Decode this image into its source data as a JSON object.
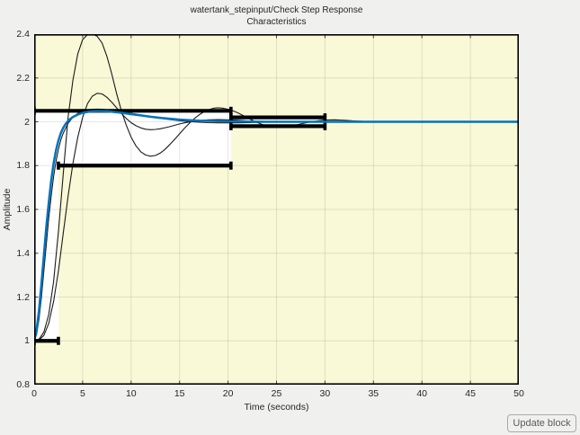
{
  "figure": {
    "title_line1": "watertank_stepinput/Check Step Response",
    "title_line2": "Characteristics"
  },
  "button": {
    "label": "Update block"
  },
  "chart_data": {
    "type": "line",
    "title": "watertank_stepinput/Check Step Response Characteristics",
    "xlabel": "Time (seconds)",
    "ylabel": "Amplitude",
    "xlim": [
      0,
      50
    ],
    "ylim": [
      0.8,
      2.4
    ],
    "xticks": [
      0,
      5,
      10,
      15,
      20,
      25,
      30,
      35,
      40,
      45,
      50
    ],
    "xtick_labels": [
      "0",
      "5",
      "10",
      "15",
      "20",
      "25",
      "30",
      "35",
      "40",
      "45",
      "50"
    ],
    "yticks": [
      0.8,
      1,
      1.2,
      1.4,
      1.6,
      1.8,
      2,
      2.2,
      2.4
    ],
    "ytick_labels": [
      "0.8",
      "1",
      "1.2",
      "1.4",
      "1.6",
      "1.8",
      "2",
      "2.2",
      "2.4"
    ],
    "grid": true,
    "legend": "none",
    "colors": {
      "forbidden_region": "#f9f9d8",
      "allowed_region": "#ffffff",
      "bound_line": "#000000",
      "iteration_curve": "#1a1a1a",
      "final_curve": "#0072bd",
      "gridline": "rgba(0,0,0,0.10)",
      "axes_box": "#000000",
      "tick": "#444444"
    },
    "bound_segments": [
      {
        "name": "upper-overshoot-bound",
        "y": 2.05,
        "x1": 0,
        "x2": 20.3
      },
      {
        "name": "lower-rise-bound",
        "y": 1.8,
        "x1": 2.5,
        "x2": 20.3
      },
      {
        "name": "upper-settling-bound",
        "y": 2.02,
        "x1": 20.3,
        "x2": 30
      },
      {
        "name": "lower-settling-bound",
        "y": 1.98,
        "x1": 20.3,
        "x2": 30
      },
      {
        "name": "initial-value-bound",
        "y": 1.0,
        "x1": 0,
        "x2": 2.5
      }
    ],
    "allowed_regions": [
      {
        "x1": 0,
        "x2": 2.5,
        "y1": 1.0,
        "y2": 2.05
      },
      {
        "x1": 2.5,
        "x2": 20.3,
        "y1": 1.8,
        "y2": 2.05
      },
      {
        "x1": 20.3,
        "x2": 30,
        "y1": 1.98,
        "y2": 2.02
      }
    ],
    "series": [
      {
        "name": "iteration-response-1",
        "color": "#1a1a1a",
        "width": 1.1,
        "points": [
          [
            0,
            1
          ],
          [
            0.5,
            1.008
          ],
          [
            1,
            1.04
          ],
          [
            1.5,
            1.12
          ],
          [
            2,
            1.27
          ],
          [
            2.5,
            1.5
          ],
          [
            3,
            1.76
          ],
          [
            3.5,
            2.02
          ],
          [
            4,
            2.19
          ],
          [
            4.5,
            2.31
          ],
          [
            5,
            2.375
          ],
          [
            5.5,
            2.398
          ],
          [
            6,
            2.401
          ],
          [
            6.5,
            2.39
          ],
          [
            7,
            2.36
          ],
          [
            7.5,
            2.3
          ],
          [
            8,
            2.22
          ],
          [
            8.5,
            2.13
          ],
          [
            9,
            2.05
          ],
          [
            9.5,
            1.985
          ],
          [
            10,
            1.93
          ],
          [
            10.5,
            1.89
          ],
          [
            11,
            1.863
          ],
          [
            11.5,
            1.848
          ],
          [
            12,
            1.843
          ],
          [
            12.5,
            1.846
          ],
          [
            13,
            1.857
          ],
          [
            13.5,
            1.874
          ],
          [
            14,
            1.896
          ],
          [
            14.5,
            1.92
          ],
          [
            15,
            1.945
          ],
          [
            15.5,
            1.97
          ],
          [
            16,
            1.993
          ],
          [
            16.5,
            2.014
          ],
          [
            17,
            2.031
          ],
          [
            17.5,
            2.045
          ],
          [
            18,
            2.055
          ],
          [
            18.5,
            2.062
          ],
          [
            19,
            2.064
          ],
          [
            19.5,
            2.062
          ],
          [
            20,
            2.057
          ],
          [
            20.5,
            2.05
          ],
          [
            21,
            2.041
          ],
          [
            21.5,
            2.03
          ],
          [
            22,
            2.018
          ],
          [
            22.5,
            2.007
          ],
          [
            23,
            1.997
          ],
          [
            23.5,
            1.988
          ],
          [
            24,
            1.981
          ],
          [
            24.5,
            1.976
          ],
          [
            25,
            1.974
          ],
          [
            25.5,
            1.974
          ],
          [
            26,
            1.976
          ],
          [
            26.5,
            1.98
          ],
          [
            27,
            1.985
          ],
          [
            27.5,
            1.99
          ],
          [
            28,
            1.995
          ],
          [
            28.5,
            1.999
          ],
          [
            29,
            2.003
          ],
          [
            29.5,
            2.006
          ],
          [
            30,
            2.008
          ],
          [
            31,
            2.009
          ],
          [
            32,
            2.007
          ],
          [
            33,
            2.004
          ],
          [
            34,
            2.002
          ],
          [
            35,
            2.001
          ],
          [
            36,
            2
          ],
          [
            40,
            2
          ],
          [
            45,
            2
          ],
          [
            50,
            2
          ]
        ]
      },
      {
        "name": "iteration-response-2",
        "color": "#1a1a1a",
        "width": 1.1,
        "points": [
          [
            0,
            1
          ],
          [
            0.5,
            1.004
          ],
          [
            1,
            1.025
          ],
          [
            1.5,
            1.08
          ],
          [
            2,
            1.18
          ],
          [
            2.5,
            1.32
          ],
          [
            3,
            1.49
          ],
          [
            3.5,
            1.66
          ],
          [
            4,
            1.81
          ],
          [
            4.5,
            1.93
          ],
          [
            5,
            2.02
          ],
          [
            5.5,
            2.083
          ],
          [
            6,
            2.117
          ],
          [
            6.5,
            2.13
          ],
          [
            7,
            2.127
          ],
          [
            7.5,
            2.112
          ],
          [
            8,
            2.09
          ],
          [
            8.5,
            2.064
          ],
          [
            9,
            2.038
          ],
          [
            9.5,
            2.015
          ],
          [
            10,
            1.996
          ],
          [
            10.5,
            1.982
          ],
          [
            11,
            1.972
          ],
          [
            11.5,
            1.966
          ],
          [
            12,
            1.964
          ],
          [
            12.5,
            1.965
          ],
          [
            13,
            1.968
          ],
          [
            13.5,
            1.973
          ],
          [
            14,
            1.978
          ],
          [
            14.5,
            1.984
          ],
          [
            15,
            1.99
          ],
          [
            15.5,
            1.995
          ],
          [
            16,
            1.999
          ],
          [
            17,
            2.005
          ],
          [
            18,
            2.009
          ],
          [
            19,
            2.01
          ],
          [
            20,
            2.009
          ],
          [
            21,
            2.007
          ],
          [
            22,
            2.004
          ],
          [
            23,
            2.002
          ],
          [
            24,
            2.001
          ],
          [
            25,
            2
          ],
          [
            26,
            2
          ],
          [
            28,
            2
          ],
          [
            30,
            2
          ],
          [
            35,
            2
          ],
          [
            40,
            2
          ],
          [
            50,
            2
          ]
        ]
      },
      {
        "name": "iteration-response-3",
        "color": "#1a1a1a",
        "width": 1.1,
        "points": [
          [
            0,
            1
          ],
          [
            0.25,
            1.03
          ],
          [
            0.5,
            1.1
          ],
          [
            0.75,
            1.2
          ],
          [
            1,
            1.32
          ],
          [
            1.25,
            1.44
          ],
          [
            1.5,
            1.56
          ],
          [
            1.75,
            1.66
          ],
          [
            2,
            1.75
          ],
          [
            2.25,
            1.82
          ],
          [
            2.5,
            1.875
          ],
          [
            2.75,
            1.917
          ],
          [
            3,
            1.948
          ],
          [
            3.5,
            1.993
          ],
          [
            4,
            2.021
          ],
          [
            4.5,
            2.038
          ],
          [
            5,
            2.048
          ],
          [
            5.5,
            2.054
          ],
          [
            6,
            2.057
          ],
          [
            6.5,
            2.058
          ],
          [
            7,
            2.057
          ],
          [
            8,
            2.053
          ],
          [
            9,
            2.047
          ],
          [
            10,
            2.039
          ],
          [
            11,
            2.031
          ],
          [
            12,
            2.023
          ],
          [
            13,
            2.016
          ],
          [
            14,
            2.01
          ],
          [
            15,
            2.005
          ],
          [
            16,
            2.001
          ],
          [
            17,
            1.998
          ],
          [
            18,
            1.996
          ],
          [
            19,
            1.995
          ],
          [
            20,
            1.995
          ],
          [
            21,
            1.995
          ],
          [
            22,
            1.996
          ],
          [
            23,
            1.997
          ],
          [
            24,
            1.998
          ],
          [
            25,
            1.999
          ],
          [
            26,
            2
          ],
          [
            28,
            2
          ],
          [
            30,
            2
          ],
          [
            35,
            2
          ],
          [
            40,
            2
          ],
          [
            50,
            2
          ]
        ]
      },
      {
        "name": "final-response",
        "color": "#0072bd",
        "width": 2.5,
        "points": [
          [
            0,
            1
          ],
          [
            0.25,
            1.05
          ],
          [
            0.5,
            1.14
          ],
          [
            0.75,
            1.26
          ],
          [
            1,
            1.39
          ],
          [
            1.25,
            1.52
          ],
          [
            1.5,
            1.63
          ],
          [
            1.75,
            1.73
          ],
          [
            2,
            1.81
          ],
          [
            2.25,
            1.87
          ],
          [
            2.5,
            1.915
          ],
          [
            2.75,
            1.948
          ],
          [
            3,
            1.972
          ],
          [
            3.25,
            1.99
          ],
          [
            3.5,
            2.004
          ],
          [
            3.75,
            2.014
          ],
          [
            4,
            2.022
          ],
          [
            4.5,
            2.033
          ],
          [
            5,
            2.041
          ],
          [
            5.5,
            2.045
          ],
          [
            6,
            2.048
          ],
          [
            6.5,
            2.049
          ],
          [
            7,
            2.049
          ],
          [
            7.5,
            2.048
          ],
          [
            8,
            2.046
          ],
          [
            9,
            2.041
          ],
          [
            10,
            2.035
          ],
          [
            11,
            2.029
          ],
          [
            12,
            2.023
          ],
          [
            13,
            2.018
          ],
          [
            14,
            2.014
          ],
          [
            15,
            2.01
          ],
          [
            16,
            2.007
          ],
          [
            17,
            2.005
          ],
          [
            18,
            2.004
          ],
          [
            19,
            2.003
          ],
          [
            20,
            2.002
          ],
          [
            21,
            2.001
          ],
          [
            22,
            2.001
          ],
          [
            24,
            2
          ],
          [
            26,
            2
          ],
          [
            30,
            2
          ],
          [
            35,
            2
          ],
          [
            40,
            2
          ],
          [
            45,
            2
          ],
          [
            50,
            2
          ]
        ]
      }
    ]
  }
}
